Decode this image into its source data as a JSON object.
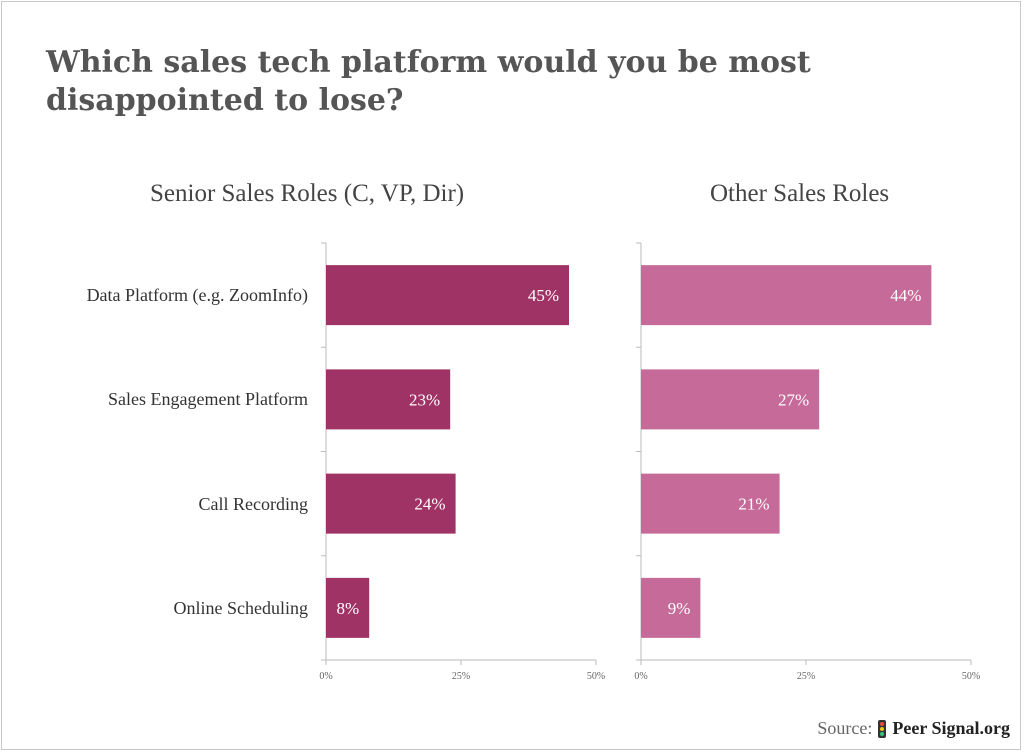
{
  "title": "Which sales tech platform would you be most disappointed to lose?",
  "source": {
    "label": "Source:",
    "brand": "Peer Signal.org"
  },
  "colors": {
    "senior": "#a03366",
    "other": "#c66b99",
    "axis": "#bbbbbb"
  },
  "chart_data": [
    {
      "type": "bar",
      "orientation": "horizontal",
      "title": "Senior Sales Roles (C, VP, Dir)",
      "categories": [
        "Data Platform (e.g. ZoomInfo)",
        "Sales Engagement Platform",
        "Call Recording",
        "Online Scheduling"
      ],
      "values": [
        45,
        23,
        24,
        8
      ],
      "value_labels": [
        "45%",
        "23%",
        "24%",
        "8%"
      ],
      "xlim": [
        0,
        50
      ],
      "xticks": [
        "0%",
        "25%",
        "50%"
      ]
    },
    {
      "type": "bar",
      "orientation": "horizontal",
      "title": "Other Sales Roles",
      "categories": [
        "Data Platform (e.g. ZoomInfo)",
        "Sales Engagement Platform",
        "Call Recording",
        "Online Scheduling"
      ],
      "values": [
        44,
        27,
        21,
        9
      ],
      "value_labels": [
        "44%",
        "27%",
        "21%",
        "9%"
      ],
      "xlim": [
        0,
        50
      ],
      "xticks": [
        "0%",
        "25%",
        "50%"
      ]
    }
  ]
}
